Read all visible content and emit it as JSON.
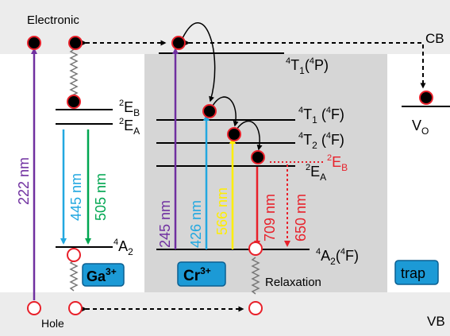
{
  "band_labels": {
    "electronic": "Electronic",
    "hole": "Hole",
    "cb": "CB",
    "vb": "VB"
  },
  "ion_labels": {
    "ga": "Ga",
    "ga_charge": "3+",
    "cr": "Cr",
    "cr_charge": "3+",
    "trap": "trap"
  },
  "levels": {
    "ga_2EB_sup": "2",
    "ga_2EB_main": "E",
    "ga_2EB_sub": "B",
    "ga_2EA_sup": "2",
    "ga_2EA_main": "E",
    "ga_2EA_sub": "A",
    "ga_4A2_sup": "4",
    "ga_4A2_main": "A",
    "ga_4A2_sub": "2",
    "cr_4T1P_sup": "4",
    "cr_4T1P_main": "T",
    "cr_4T1P_sub": "1",
    "cr_4T1P_term": "(",
    "cr_4T1P_term_sup": "4",
    "cr_4T1P_term_end": "P)",
    "cr_4T1F_sup": "4",
    "cr_4T1F_main": "T",
    "cr_4T1F_sub": "1",
    "cr_4T1F_term": " (",
    "cr_4T1F_term_sup": "4",
    "cr_4T1F_term_end": "F)",
    "cr_4T2F_sup": "4",
    "cr_4T2F_main": "T",
    "cr_4T2F_sub": "2",
    "cr_4T2F_term": " (",
    "cr_4T2F_term_sup": "4",
    "cr_4T2F_term_end": "F)",
    "cr_2EB_sup": "2",
    "cr_2EB_main": "E",
    "cr_2EB_sub": "B",
    "cr_2EA_sup": "2",
    "cr_2EA_main": "E",
    "cr_2EA_sub": "A",
    "cr_4A2F_sup": "4",
    "cr_4A2F_main": "A",
    "cr_4A2F_sub": "2",
    "cr_4A2F_term": "(",
    "cr_4A2F_term_sup": "4",
    "cr_4A2F_term_end": "F)",
    "vo_main": "V",
    "vo_sub": "O"
  },
  "wavelengths": {
    "w222": "222 nm",
    "w445": "445 nm",
    "w505": "505 nm",
    "w245": "245 nm",
    "w426": "426 nm",
    "w566": "566 nm",
    "w709": "709 nm",
    "w650": "650 nm"
  },
  "annotations": {
    "relaxation": "Relaxation"
  },
  "colors": {
    "band": "#ececec",
    "cr_box": "#d6d6d6",
    "electron_ring": "#e8202a",
    "badge_fill": "#1c9ad6",
    "badge_stroke": "#0b5f91",
    "purple": "#7030a0",
    "blue": "#22a8e0",
    "green": "#00a651",
    "yellow": "#ffee00",
    "red": "#e8202a",
    "black": "#000000"
  }
}
